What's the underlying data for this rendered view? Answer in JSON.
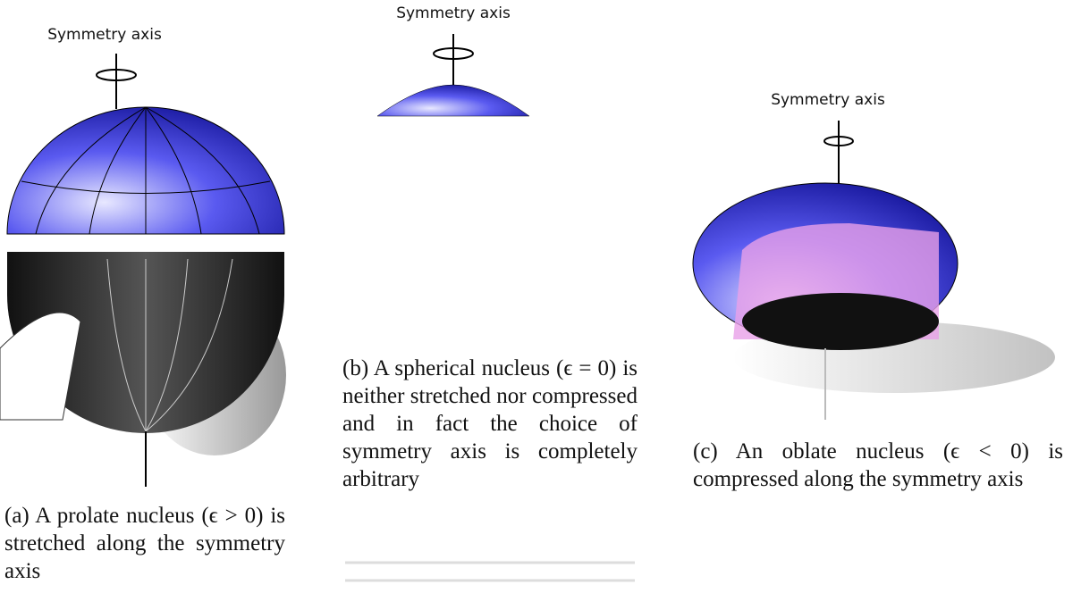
{
  "figures": [
    {
      "axis_label": "Symmetry axis",
      "caption": "(a) A prolate nucleus (ϵ > 0) is stretched along the symmetry axis"
    },
    {
      "axis_label": "Symmetry axis",
      "caption": "(b) A spherical nucleus (ϵ = 0) is neither stretched nor compressed and in fact the choice of symmetry axis is completely arbitrary"
    },
    {
      "axis_label": "Symmetry axis",
      "caption": "(c) An oblate nucleus (ϵ < 0) is compressed along the symmetry axis"
    }
  ]
}
